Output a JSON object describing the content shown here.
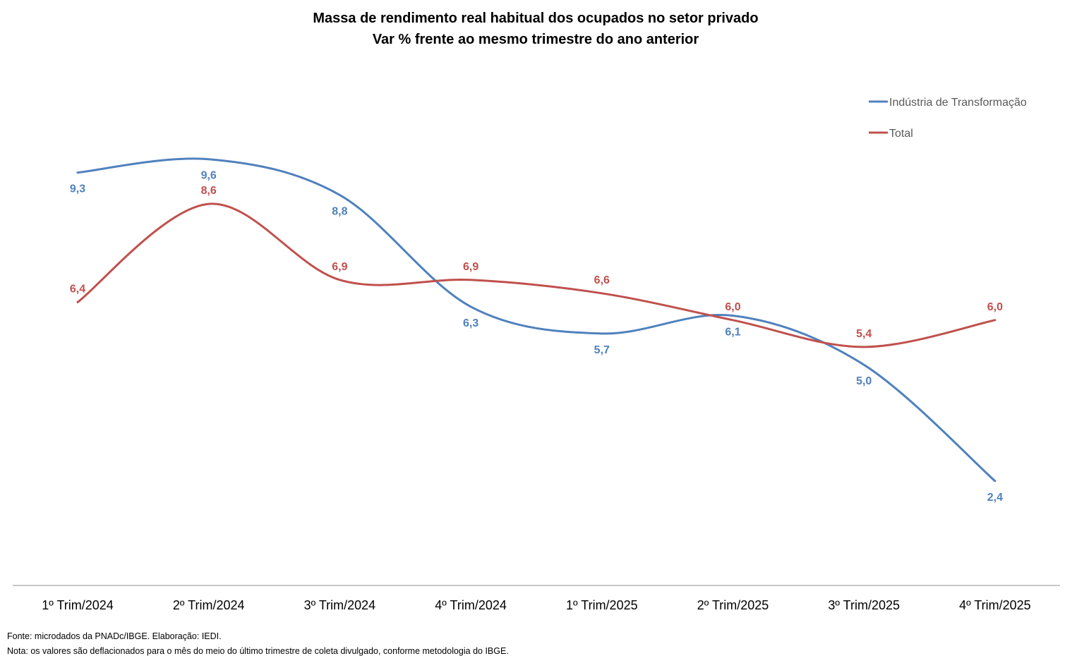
{
  "chart_data": {
    "type": "line",
    "title": "Massa de rendimento real habitual dos ocupados no setor privado",
    "subtitle": "Var % frente ao mesmo trimestre do ano anterior",
    "xlabel": "",
    "ylabel": "",
    "categories": [
      "1º Trim/2024",
      "2º Trim/2024",
      "3º Trim/2024",
      "4º Trim/2024",
      "1º Trim/2025",
      "2º Trim/2025",
      "3º Trim/2025",
      "4º Trim/2025"
    ],
    "series": [
      {
        "name": "Indústria de Transformação",
        "color": "#4F81BD",
        "values": [
          9.3,
          9.6,
          8.8,
          6.3,
          5.7,
          6.1,
          5.0,
          2.4
        ],
        "labels": [
          "9,3",
          "9,6",
          "8,8",
          "6,3",
          "5,7",
          "6,1",
          "5,0",
          "2,4"
        ],
        "label_position": "below"
      },
      {
        "name": "Total",
        "color": "#C0504D",
        "values": [
          6.4,
          8.6,
          6.9,
          6.9,
          6.6,
          6.0,
          5.4,
          6.0
        ],
        "labels": [
          "6,4",
          "8,6",
          "6,9",
          "6,9",
          "6,6",
          "6,0",
          "5,4",
          "6,0"
        ],
        "label_position": "above"
      }
    ],
    "ylim": [
      0,
      11
    ],
    "y_axis_visible": false,
    "grid": false,
    "smooth": true,
    "legend": {
      "position": "top-right"
    }
  },
  "footnotes": {
    "source": "Fonte: microdados da PNADc/IBGE. Elaboração: IEDI.",
    "note": "Nota: os valores são deflacionados para o mês do meio do último trimestre de coleta divulgado, conforme metodologia do IBGE."
  },
  "colors": {
    "axis_line": "#A6A6A6"
  }
}
